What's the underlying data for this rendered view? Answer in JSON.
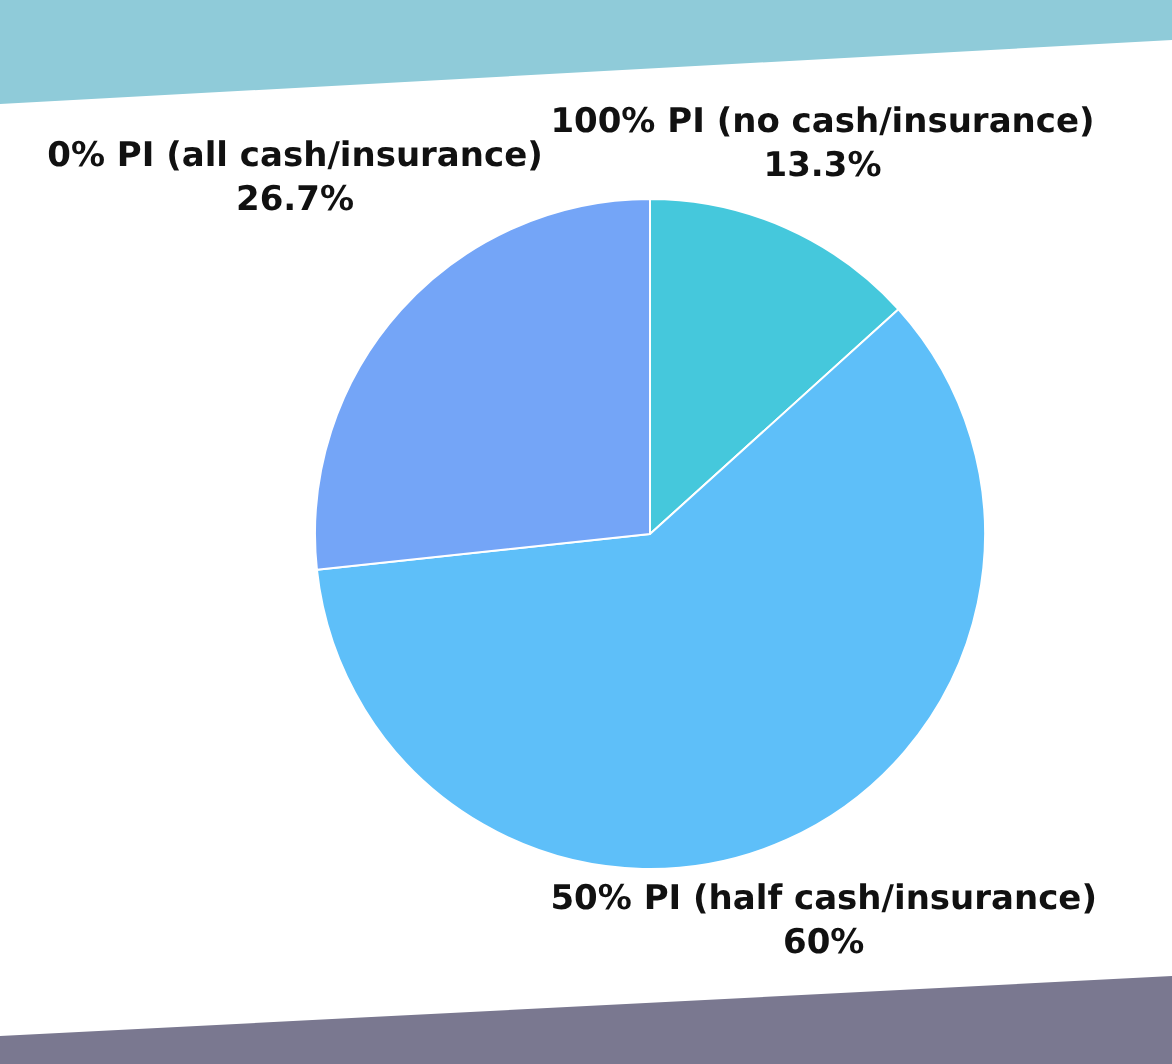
{
  "chart_data": {
    "type": "pie",
    "categories": [
      "100% PI (no cash/insurance)",
      "50% PI (half cash/insurance)",
      "0% PI (all cash/insurance)"
    ],
    "values": [
      13.3,
      60,
      26.7
    ],
    "colors": [
      "#45c8dc",
      "#5ebff9",
      "#74a5f7"
    ],
    "value_labels": [
      "13.3%",
      "60%",
      "26.7%"
    ],
    "legend": false
  }
}
